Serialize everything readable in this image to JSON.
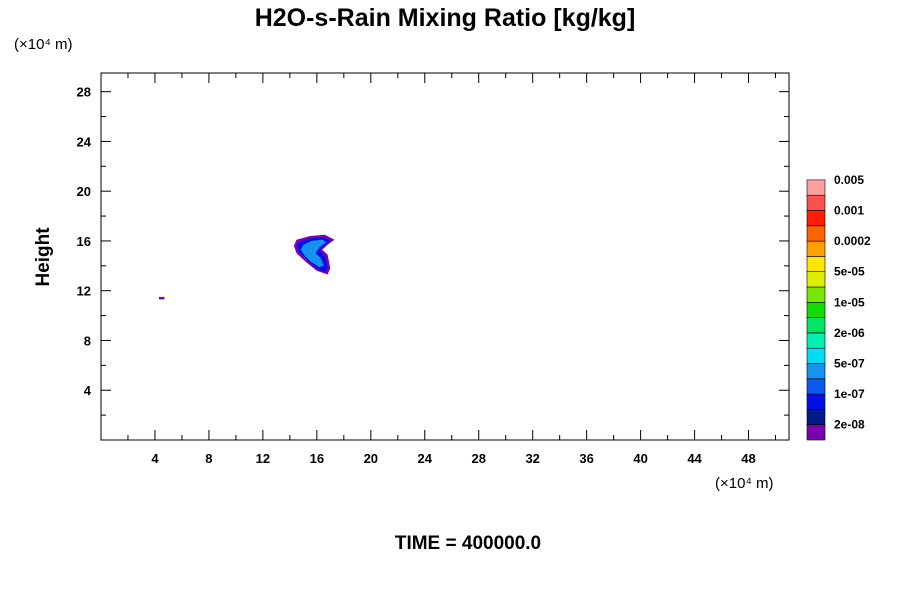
{
  "chart_data": {
    "type": "contour",
    "title": "H2O-s-Rain Mixing Ratio [kg/kg]",
    "ylabel": "Height",
    "x_unit": "(×10⁴ m)",
    "y_unit": "(×10⁴ m)",
    "xlim": [
      0,
      51
    ],
    "ylim": [
      0,
      29.5
    ],
    "x_ticks": [
      4,
      8,
      12,
      16,
      20,
      24,
      28,
      32,
      36,
      40,
      44,
      48
    ],
    "y_ticks": [
      4,
      8,
      12,
      16,
      20,
      24,
      28
    ],
    "x_tick_labels": [
      "4",
      "8",
      "12",
      "16",
      "20",
      "24",
      "28",
      "32",
      "36",
      "40",
      "44",
      "48"
    ],
    "y_tick_labels": [
      "4",
      "8",
      "12",
      "16",
      "20",
      "24",
      "28"
    ],
    "time_label": "TIME = 400000.0",
    "colorbar": {
      "colors": [
        "#7a00b0",
        "#001a8c",
        "#0010e6",
        "#0a5af0",
        "#1494f0",
        "#00dcf0",
        "#00f0b4",
        "#00e664",
        "#14dc00",
        "#78e600",
        "#dcf000",
        "#ffe600",
        "#ffa000",
        "#ff6400",
        "#ff1e00",
        "#ff5050",
        "#ffa0a0"
      ],
      "labels": [
        "2e-08",
        "1e-07",
        "5e-07",
        "2e-06",
        "1e-05",
        "5e-05",
        "0.0002",
        "0.001",
        "0.005"
      ]
    },
    "features": [
      {
        "level_colors": [
          "#7a00b0",
          "#0010e6",
          "#1494f0"
        ],
        "outer": [
          [
            14.5,
            16.1
          ],
          [
            15.5,
            16.4
          ],
          [
            16.6,
            16.5
          ],
          [
            17.3,
            16.1
          ],
          [
            16.8,
            15.7
          ],
          [
            16.4,
            15.3
          ],
          [
            16.8,
            14.9
          ],
          [
            17.0,
            13.8
          ],
          [
            16.8,
            13.3
          ],
          [
            16.0,
            13.6
          ],
          [
            15.2,
            14.3
          ],
          [
            14.5,
            15.0
          ],
          [
            14.3,
            15.6
          ]
        ],
        "middle": [
          [
            14.7,
            15.9
          ],
          [
            15.5,
            16.2
          ],
          [
            16.5,
            16.3
          ],
          [
            17.0,
            16.0
          ],
          [
            16.5,
            15.6
          ],
          [
            16.2,
            15.2
          ],
          [
            16.6,
            14.8
          ],
          [
            16.8,
            13.9
          ],
          [
            16.6,
            13.5
          ],
          [
            16.0,
            13.8
          ],
          [
            15.3,
            14.5
          ],
          [
            14.7,
            15.1
          ],
          [
            14.5,
            15.6
          ]
        ],
        "inner": [
          [
            15.0,
            15.7
          ],
          [
            15.6,
            16.0
          ],
          [
            16.4,
            16.1
          ],
          [
            16.7,
            15.9
          ],
          [
            16.2,
            15.5
          ],
          [
            15.9,
            15.0
          ],
          [
            16.3,
            14.6
          ],
          [
            16.5,
            14.0
          ],
          [
            16.2,
            13.9
          ],
          [
            15.6,
            14.3
          ],
          [
            15.1,
            14.8
          ],
          [
            14.8,
            15.3
          ]
        ]
      },
      {
        "level_colors": [
          "#7a00b0",
          "#0010e6",
          "#1494f0"
        ],
        "outer": [
          [
            4.3,
            11.5
          ],
          [
            4.7,
            11.5
          ],
          [
            4.7,
            11.3
          ],
          [
            4.3,
            11.3
          ]
        ],
        "middle": [],
        "inner": []
      }
    ]
  }
}
